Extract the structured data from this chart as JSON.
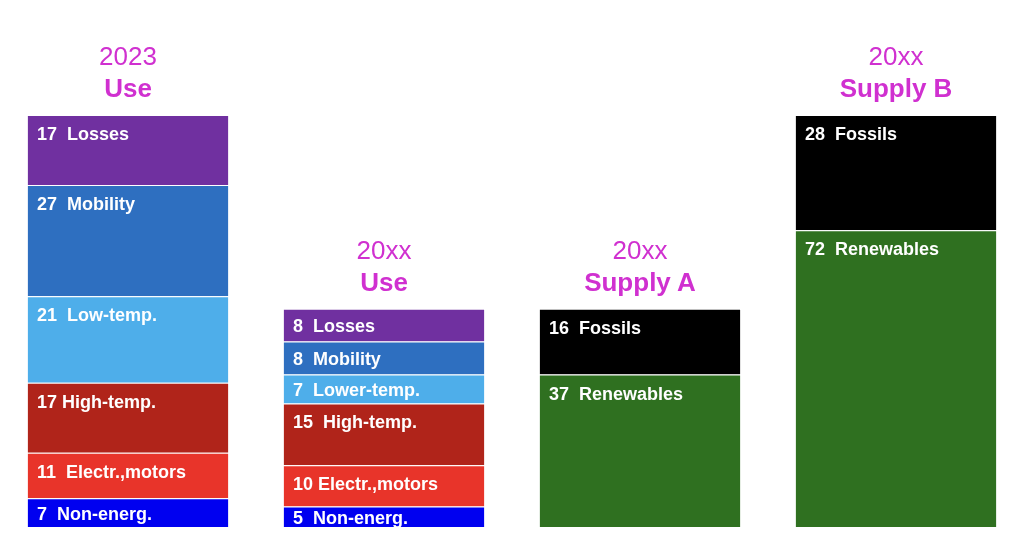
{
  "chart_data": {
    "type": "bar",
    "stacked": true,
    "categories": [
      "2023 Use",
      "20xx Use",
      "20xx Supply A",
      "20xx Supply B"
    ],
    "ylim": [
      0,
      100
    ],
    "tick_labels": false,
    "legend": false,
    "series": [
      {
        "color": "#0000f0",
        "values": [
          7,
          5,
          null,
          null
        ],
        "value_labels": [
          "7  Non-energ.",
          "5  Non-energ.",
          null,
          null
        ]
      },
      {
        "color": "#e8342a",
        "values": [
          11,
          10,
          null,
          null
        ],
        "value_labels": [
          "11  Electr.,motors",
          "10 Electr.,motors",
          null,
          null
        ]
      },
      {
        "color": "#b0241a",
        "values": [
          17,
          15,
          null,
          null
        ],
        "value_labels": [
          "17 High-temp.",
          "15  High-temp.",
          null,
          null
        ]
      },
      {
        "color": "#4eaeea",
        "values": [
          21,
          7,
          null,
          null
        ],
        "value_labels": [
          "21  Low-temp.",
          "7  Lower-temp.",
          null,
          null
        ]
      },
      {
        "color": "#2e6fc0",
        "values": [
          27,
          8,
          null,
          null
        ],
        "value_labels": [
          "27  Mobility",
          "8  Mobility",
          null,
          null
        ]
      },
      {
        "color": "#7030a0",
        "values": [
          17,
          8,
          null,
          null
        ],
        "value_labels": [
          "17  Losses",
          "8  Losses",
          null,
          null
        ]
      },
      {
        "color": "#2f7020",
        "values": [
          null,
          null,
          37,
          72
        ],
        "value_labels": [
          null,
          null,
          "37  Renewables",
          "72  Renewables"
        ]
      },
      {
        "color": "#000000",
        "values": [
          null,
          null,
          16,
          28
        ],
        "value_labels": [
          null,
          null,
          "16  Fossils",
          "28  Fossils"
        ]
      }
    ]
  }
}
